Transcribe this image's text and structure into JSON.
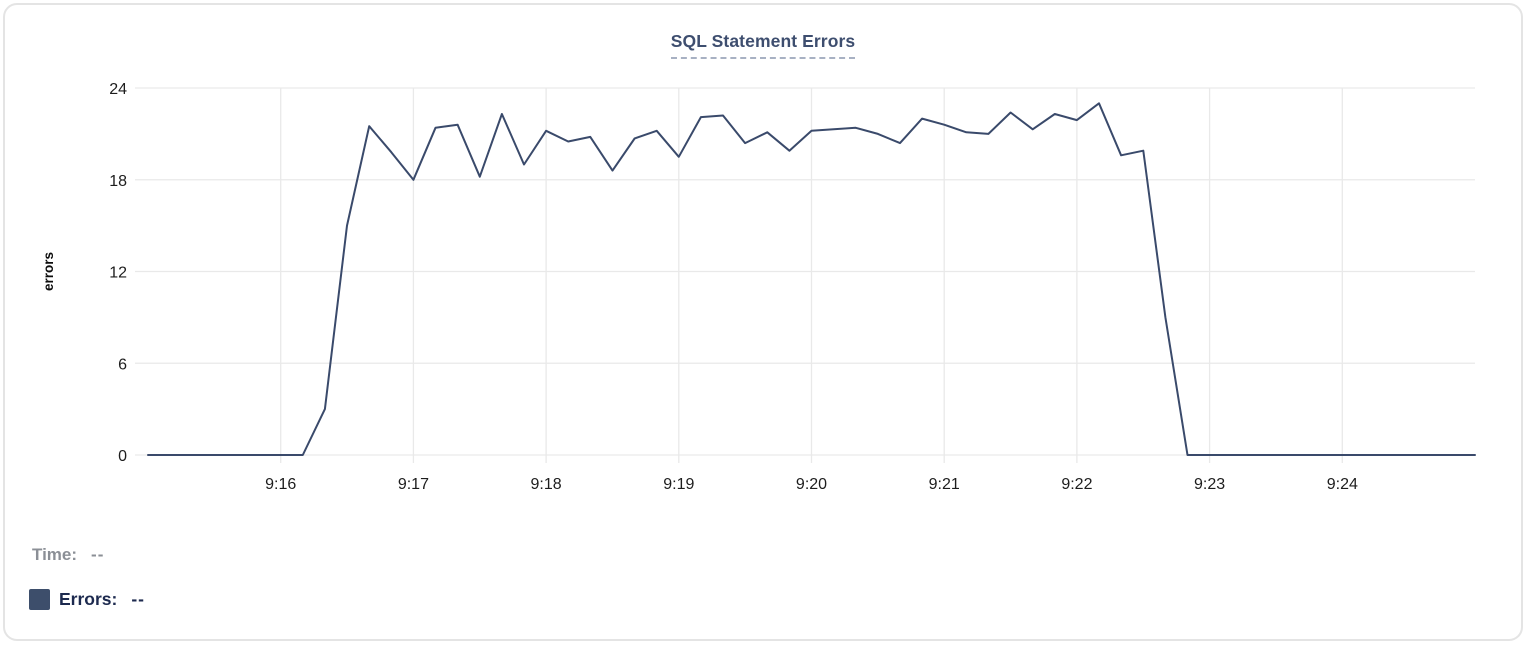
{
  "card": {
    "title": "SQL Statement Errors"
  },
  "legend": {
    "time_label": "Time:",
    "time_value": "--",
    "errors_label": "Errors:",
    "errors_value": "--"
  },
  "colors": {
    "line": "#3a4a6b",
    "title": "#3e4e6f",
    "title_underline": "#a8b1c3",
    "grid": "#e9e9e9",
    "tick_text": "#1d1d1d",
    "legend_time_text": "#8b8f96",
    "legend_errors_text": "#1d2a4f",
    "swatch": "#3d4e6b",
    "card_border": "#e4e4e4"
  },
  "chart_data": {
    "type": "line",
    "title": "SQL Statement Errors",
    "xlabel": "",
    "ylabel": "errors",
    "ylim": [
      0,
      24
    ],
    "yticks": [
      0,
      6,
      12,
      18,
      24
    ],
    "xticks": [
      "9:16",
      "9:17",
      "9:18",
      "9:19",
      "9:20",
      "9:21",
      "9:22",
      "9:23",
      "9:24"
    ],
    "x_range": [
      "9:15:00",
      "9:25:00"
    ],
    "grid": true,
    "legend_position": "bottom-left",
    "series": [
      {
        "name": "Errors",
        "color": "#3a4a6b",
        "points": [
          [
            "9:15:00",
            0
          ],
          [
            "9:15:10",
            0
          ],
          [
            "9:15:20",
            0
          ],
          [
            "9:15:30",
            0
          ],
          [
            "9:15:40",
            0
          ],
          [
            "9:15:50",
            0
          ],
          [
            "9:16:00",
            0
          ],
          [
            "9:16:10",
            0
          ],
          [
            "9:16:20",
            3
          ],
          [
            "9:16:30",
            15
          ],
          [
            "9:16:40",
            21.5
          ],
          [
            "9:16:50",
            19.8
          ],
          [
            "9:17:00",
            18
          ],
          [
            "9:17:10",
            21.4
          ],
          [
            "9:17:20",
            21.6
          ],
          [
            "9:17:30",
            18.2
          ],
          [
            "9:17:40",
            22.3
          ],
          [
            "9:17:50",
            19
          ],
          [
            "9:18:00",
            21.2
          ],
          [
            "9:18:10",
            20.5
          ],
          [
            "9:18:20",
            20.8
          ],
          [
            "9:18:30",
            18.6
          ],
          [
            "9:18:40",
            20.7
          ],
          [
            "9:18:50",
            21.2
          ],
          [
            "9:19:00",
            19.5
          ],
          [
            "9:19:10",
            22.1
          ],
          [
            "9:19:20",
            22.2
          ],
          [
            "9:19:30",
            20.4
          ],
          [
            "9:19:40",
            21.1
          ],
          [
            "9:19:50",
            19.9
          ],
          [
            "9:20:00",
            21.2
          ],
          [
            "9:20:10",
            21.3
          ],
          [
            "9:20:20",
            21.4
          ],
          [
            "9:20:30",
            21.0
          ],
          [
            "9:20:40",
            20.4
          ],
          [
            "9:20:50",
            22.0
          ],
          [
            "9:21:00",
            21.6
          ],
          [
            "9:21:10",
            21.1
          ],
          [
            "9:21:20",
            21.0
          ],
          [
            "9:21:30",
            22.4
          ],
          [
            "9:21:40",
            21.3
          ],
          [
            "9:21:50",
            22.3
          ],
          [
            "9:22:00",
            21.9
          ],
          [
            "9:22:10",
            23.0
          ],
          [
            "9:22:20",
            19.6
          ],
          [
            "9:22:30",
            19.9
          ],
          [
            "9:22:40",
            9
          ],
          [
            "9:22:50",
            0
          ],
          [
            "9:23:00",
            0
          ],
          [
            "9:23:10",
            0
          ],
          [
            "9:23:20",
            0
          ],
          [
            "9:23:30",
            0
          ],
          [
            "9:23:40",
            0
          ],
          [
            "9:23:50",
            0
          ],
          [
            "9:24:00",
            0
          ],
          [
            "9:24:10",
            0
          ],
          [
            "9:24:20",
            0
          ],
          [
            "9:24:30",
            0
          ],
          [
            "9:24:40",
            0
          ],
          [
            "9:24:50",
            0
          ],
          [
            "9:25:00",
            0
          ]
        ]
      }
    ]
  }
}
